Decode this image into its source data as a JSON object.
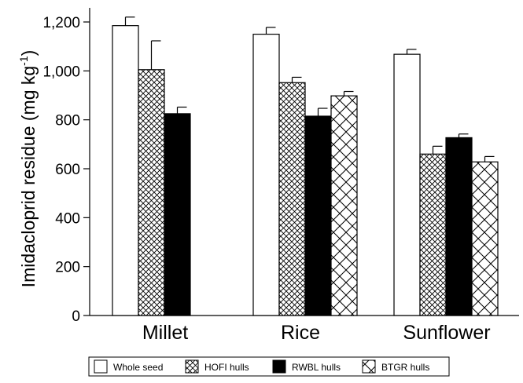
{
  "chart_data": {
    "type": "bar",
    "title": "",
    "ylabel_main": "Imidacloprid residue (mg kg",
    "ylabel_sup": "-1",
    "ylabel_close": ")",
    "xlabel": "",
    "ylim": [
      0,
      1200
    ],
    "y_ticks": [
      0,
      200,
      400,
      600,
      800,
      1000,
      1200
    ],
    "y_tick_labels": [
      "0",
      "200",
      "400",
      "600",
      "800",
      "1,000",
      "1,200"
    ],
    "categories": [
      "Millet",
      "Rice",
      "Sunflower"
    ],
    "series": [
      {
        "name": "Whole seed",
        "pattern": "white",
        "values": [
          1185,
          1150,
          1068
        ],
        "errors": [
          35,
          28,
          20
        ]
      },
      {
        "name": "HOFI hulls",
        "pattern": "crosshatch-fine",
        "values": [
          1005,
          952,
          660
        ],
        "errors": [
          118,
          22,
          32
        ]
      },
      {
        "name": "RWBL hulls",
        "pattern": "solid-black",
        "values": [
          825,
          815,
          727
        ],
        "errors": [
          27,
          32,
          15
        ]
      },
      {
        "name": "BTGR hulls",
        "pattern": "crosshatch-coarse",
        "values": [
          null,
          898,
          628
        ],
        "errors": [
          null,
          18,
          22
        ]
      }
    ],
    "grid": false,
    "legend_position": "bottom",
    "colors": {
      "black": "#000000",
      "white": "#ffffff"
    }
  }
}
